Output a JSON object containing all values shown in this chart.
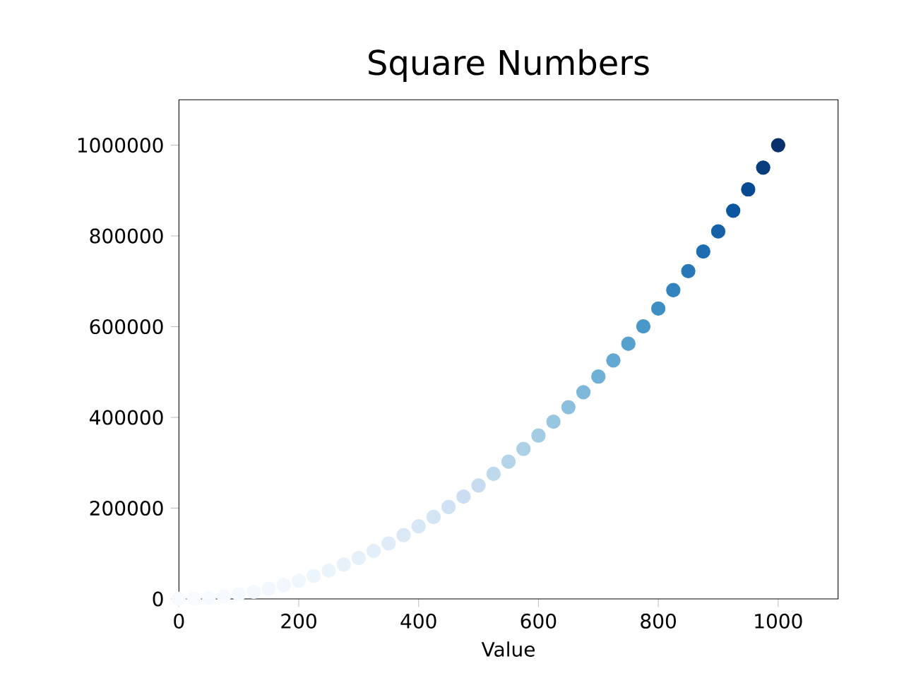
{
  "chart_data": {
    "type": "scatter",
    "title": "Square Numbers",
    "xlabel": "Value",
    "x": [
      0,
      25,
      50,
      75,
      100,
      125,
      150,
      175,
      200,
      225,
      250,
      275,
      300,
      325,
      350,
      375,
      400,
      425,
      450,
      475,
      500,
      525,
      550,
      575,
      600,
      625,
      650,
      675,
      700,
      725,
      750,
      775,
      800,
      825,
      850,
      875,
      900,
      925,
      950,
      975,
      1000
    ],
    "values": [
      0,
      625,
      2500,
      5625,
      10000,
      15625,
      22500,
      30625,
      40000,
      50625,
      62500,
      75625,
      90000,
      105625,
      122500,
      140625,
      160000,
      180625,
      202500,
      225625,
      250000,
      275625,
      302500,
      330625,
      360000,
      390625,
      422500,
      455625,
      490000,
      525625,
      562500,
      600625,
      640000,
      680625,
      722500,
      765625,
      810000,
      855625,
      902500,
      950625,
      1000000
    ],
    "colors": [
      "#f7fbff",
      "#f7fbff",
      "#f6fbff",
      "#f6faff",
      "#f5fafe",
      "#f4f9fe",
      "#f2f8fe",
      "#f1f7fd",
      "#eff6fc",
      "#edf5fc",
      "#ebf3fb",
      "#e8f1fa",
      "#e5f0f9",
      "#e2eef8",
      "#dfebf7",
      "#dbe9f6",
      "#d7e7f5",
      "#d3e4f3",
      "#cfe1f2",
      "#cbdef1",
      "#c6dbef",
      "#bed8ec",
      "#b5d4e9",
      "#acd0e6",
      "#a3cce3",
      "#98c6e0",
      "#8bbfdd",
      "#7db8da",
      "#6fb0d7",
      "#63a8d3",
      "#56a0ce",
      "#4a98c9",
      "#3e8ec4",
      "#3383be",
      "#2878b8",
      "#1e6db2",
      "#1562a9",
      "#0c56a0",
      "#084a91",
      "#083d7e",
      "#08306b"
    ],
    "marker": "circle",
    "xlim": [
      0,
      1100
    ],
    "xticks": [
      0,
      200,
      400,
      600,
      800,
      1000
    ],
    "ylim": [
      0,
      1100000
    ],
    "yticks": [
      0,
      200000,
      400000,
      600000,
      800000,
      1000000
    ]
  }
}
